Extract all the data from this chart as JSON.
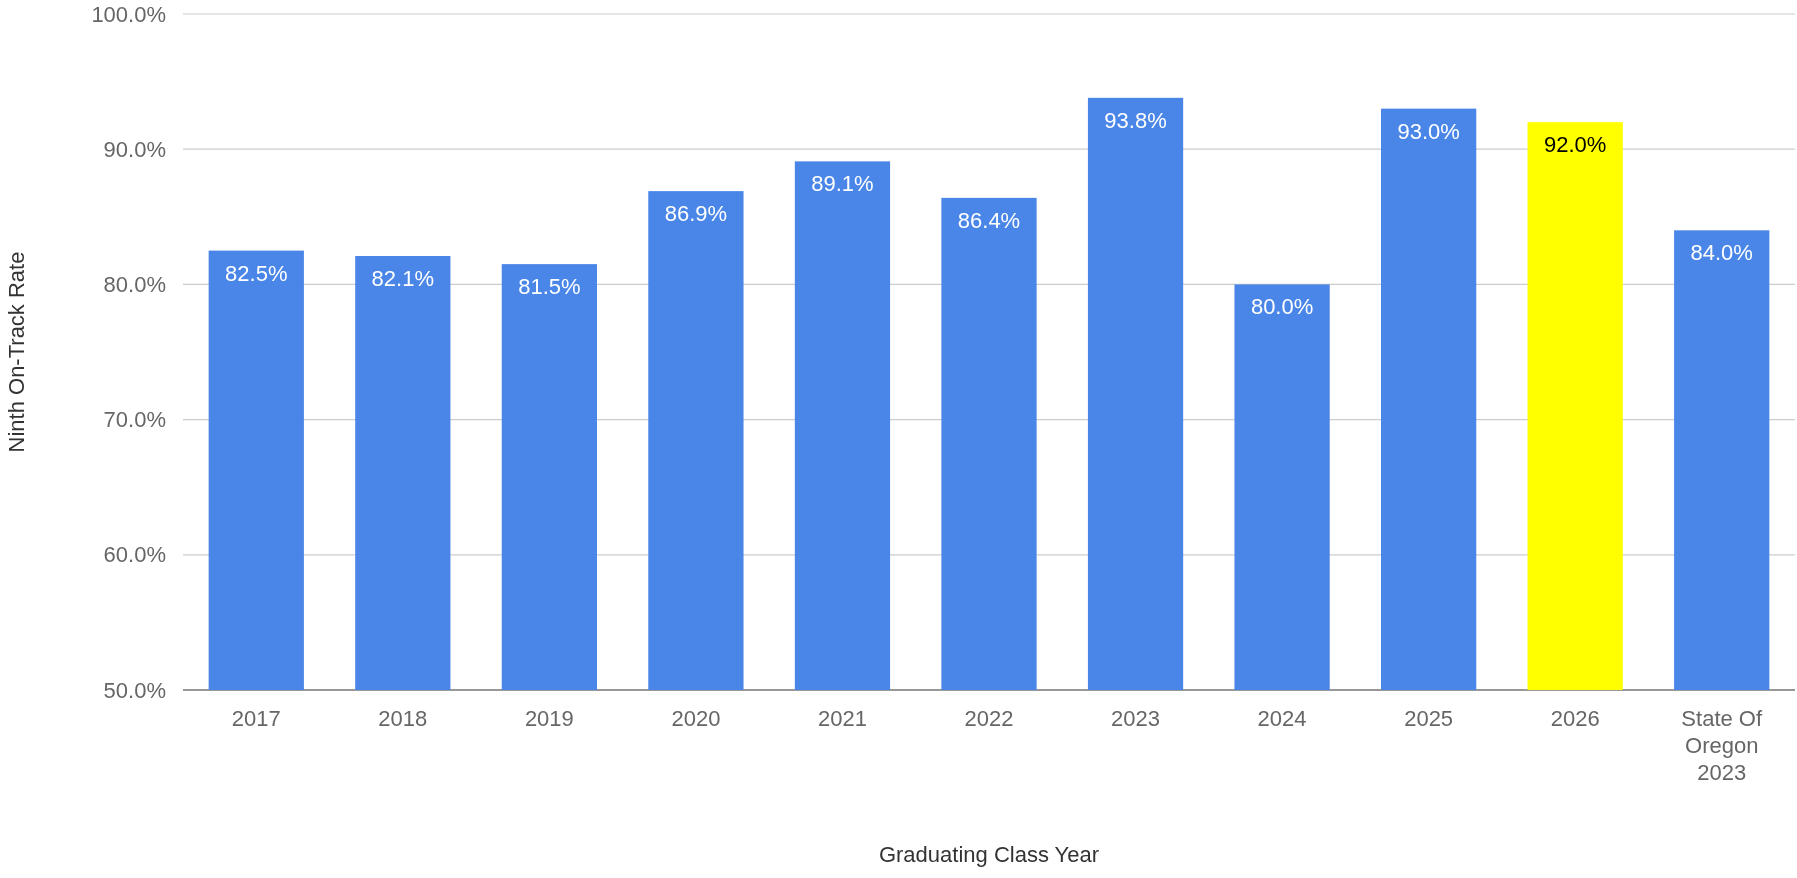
{
  "chart_data": {
    "type": "bar",
    "xlabel": "Graduating Class Year",
    "ylabel": "Ninth On-Track Rate",
    "categories": [
      "2017",
      "2018",
      "2019",
      "2020",
      "2021",
      "2022",
      "2023",
      "2024",
      "2025",
      "2026",
      "State Of Oregon 2023"
    ],
    "values": [
      82.5,
      82.1,
      81.5,
      86.9,
      89.1,
      86.4,
      93.8,
      80.0,
      93.0,
      92.0,
      84.0
    ],
    "colors": [
      "#4a86e8",
      "#4a86e8",
      "#4a86e8",
      "#4a86e8",
      "#4a86e8",
      "#4a86e8",
      "#4a86e8",
      "#4a86e8",
      "#4a86e8",
      "#ffff00",
      "#4a86e8"
    ],
    "value_labels": [
      "82.5%",
      "82.1%",
      "81.5%",
      "86.9%",
      "89.1%",
      "86.4%",
      "93.8%",
      "80.0%",
      "93.0%",
      "92.0%",
      "84.0%"
    ],
    "ylim": [
      50,
      100
    ],
    "yticks": [
      {
        "value": 50,
        "label": "50.0%"
      },
      {
        "value": 60,
        "label": "60.0%"
      },
      {
        "value": 70,
        "label": "70.0%"
      },
      {
        "value": 80,
        "label": "80.0%"
      },
      {
        "value": 90,
        "label": "90.0%"
      },
      {
        "value": 100,
        "label": "100.0%"
      }
    ],
    "grid": "y"
  }
}
